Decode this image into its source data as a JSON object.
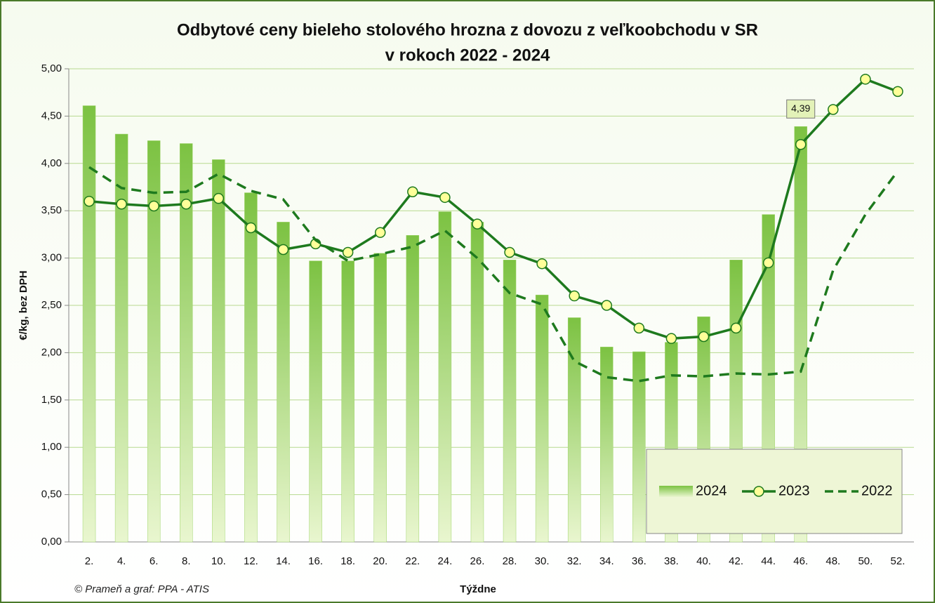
{
  "chart_data": {
    "type": "bar-line",
    "title": [
      "Odbytové ceny bieleho stolového hrozna z dovozu z veľkoobchodu v SR",
      "v rokoch 2022 - 2024"
    ],
    "y_label": "€/kg, bez DPH",
    "x_label": "Týždne",
    "source": "© Prameň a graf: PPA - ATIS",
    "categories": [
      "2.",
      "4.",
      "6.",
      "8.",
      "10.",
      "12.",
      "14.",
      "16.",
      "18.",
      "20.",
      "22.",
      "24.",
      "26.",
      "28.",
      "30.",
      "32.",
      "34.",
      "36.",
      "38.",
      "40.",
      "42.",
      "44.",
      "46.",
      "48.",
      "50.",
      "52."
    ],
    "ylim": [
      0,
      5
    ],
    "yticks": [
      {
        "value": 0,
        "label": "0,00"
      },
      {
        "value": 0.5,
        "label": "0,50"
      },
      {
        "value": 1,
        "label": "1,00"
      },
      {
        "value": 1.5,
        "label": "1,50"
      },
      {
        "value": 2,
        "label": "2,00"
      },
      {
        "value": 2.5,
        "label": "2,50"
      },
      {
        "value": 3,
        "label": "3,00"
      },
      {
        "value": 3.5,
        "label": "3,50"
      },
      {
        "value": 4,
        "label": "4,00"
      },
      {
        "value": 4.5,
        "label": "4,50"
      },
      {
        "value": 5,
        "label": "5,00"
      }
    ],
    "grid": true,
    "legend": "bottom-right",
    "series": [
      {
        "name": "2024",
        "type": "bar",
        "color": "#7cc242",
        "values": [
          4.61,
          4.31,
          4.24,
          4.21,
          4.04,
          3.69,
          3.38,
          2.97,
          2.97,
          3.05,
          3.24,
          3.49,
          3.38,
          2.98,
          2.61,
          2.37,
          2.06,
          2.01,
          2.11,
          2.38,
          2.98,
          3.46,
          4.39,
          null,
          null,
          null
        ],
        "value_labels": [
          null,
          null,
          null,
          null,
          null,
          null,
          null,
          null,
          null,
          null,
          null,
          null,
          null,
          null,
          null,
          null,
          null,
          null,
          null,
          null,
          null,
          null,
          "4,39",
          null,
          null,
          null
        ]
      },
      {
        "name": "2023",
        "type": "line",
        "color": "#1e7a1e",
        "marker": "#ffff99",
        "values": [
          3.6,
          3.57,
          3.55,
          3.57,
          3.63,
          3.32,
          3.09,
          3.15,
          3.06,
          3.27,
          3.7,
          3.64,
          3.36,
          3.06,
          2.94,
          2.6,
          2.5,
          2.26,
          2.15,
          2.17,
          2.26,
          2.95,
          4.2,
          4.57,
          4.89,
          4.76
        ]
      },
      {
        "name": "2022",
        "type": "dashed",
        "color": "#1e7a1e",
        "values": [
          3.96,
          3.74,
          3.69,
          3.7,
          3.89,
          3.71,
          3.62,
          3.19,
          2.97,
          3.04,
          3.12,
          3.29,
          3.0,
          2.63,
          2.51,
          1.91,
          1.74,
          1.7,
          1.76,
          1.75,
          1.78,
          1.77,
          1.8,
          2.87,
          3.46,
          3.92
        ]
      }
    ]
  }
}
